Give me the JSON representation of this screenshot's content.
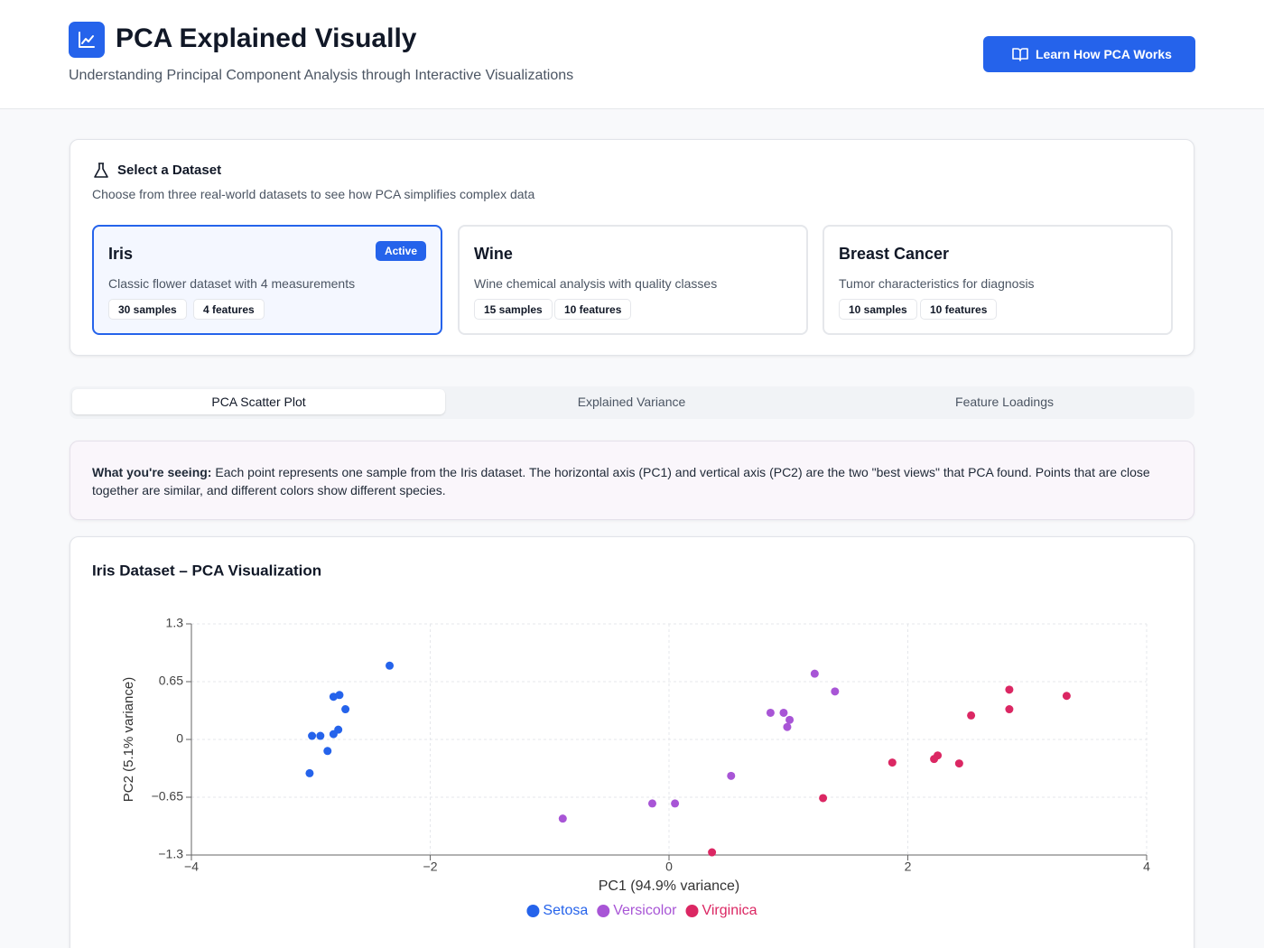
{
  "header": {
    "title": "PCA Explained Visually",
    "subtitle": "Understanding Principal Component Analysis through Interactive Visualizations",
    "button": "Learn How PCA Works"
  },
  "dataset_panel": {
    "title": "Select a Dataset",
    "description": "Choose from three real-world datasets to see how PCA simplifies complex data",
    "cards": [
      {
        "name": "Iris",
        "badge": "Active",
        "description": "Classic flower dataset with 4 measurements",
        "samples": "30 samples",
        "features": "4 features"
      },
      {
        "name": "Wine",
        "description": "Wine chemical analysis with quality classes",
        "samples": "15 samples",
        "features": "10 features"
      },
      {
        "name": "Breast Cancer",
        "description": "Tumor characteristics for diagnosis",
        "samples": "10 samples",
        "features": "10 features"
      }
    ]
  },
  "tabs": [
    "PCA Scatter Plot",
    "Explained Variance",
    "Feature Loadings"
  ],
  "info": {
    "label": "What you're seeing:",
    "text": "Each point represents one sample from the Iris dataset. The horizontal axis (PC1) and vertical axis (PC2) are the two \"best views\" that PCA found. Points that are close together are similar, and different colors show different species."
  },
  "chart_data": {
    "type": "scatter",
    "title": "Iris Dataset – PCA Visualization",
    "xlabel": "PC1 (94.9% variance)",
    "ylabel": "PC2 (5.1% variance)",
    "xlim": [
      -4,
      4
    ],
    "xticks": [
      {
        "value": -4,
        "label": "−4"
      },
      {
        "value": -2,
        "label": "−2"
      },
      0,
      2,
      4
    ],
    "ylim": [
      -1.3,
      1.3
    ],
    "yticks": [
      {
        "value": -1.3,
        "label": "−1.3"
      },
      {
        "value": -0.65,
        "label": "−0.65"
      },
      0,
      0.65,
      1.3
    ],
    "grid": true,
    "series": [
      {
        "name": "Setosa",
        "color": "#2563eb",
        "x": [
          -2.34,
          -2.81,
          -2.76,
          -2.71,
          -2.99,
          -2.92,
          -2.77,
          -2.81,
          -2.86,
          -3.01
        ],
        "values": [
          0.83,
          0.48,
          0.5,
          0.34,
          0.04,
          0.04,
          0.11,
          0.06,
          -0.13,
          -0.38
        ]
      },
      {
        "name": "Versicolor",
        "color": "#a855d6",
        "x": [
          1.22,
          1.39,
          0.85,
          0.96,
          1.01,
          0.99,
          0.52,
          -0.14,
          0.05,
          -0.89
        ],
        "values": [
          0.74,
          0.54,
          0.3,
          0.3,
          0.22,
          0.14,
          -0.41,
          -0.72,
          -0.72,
          -0.89
        ]
      },
      {
        "name": "Virginica",
        "color": "#db2763",
        "x": [
          2.85,
          3.33,
          2.85,
          2.53,
          1.87,
          2.25,
          2.22,
          2.43,
          1.29,
          0.36
        ],
        "values": [
          0.56,
          0.49,
          0.34,
          0.27,
          -0.26,
          -0.18,
          -0.22,
          -0.27,
          -0.66,
          -1.27
        ]
      }
    ]
  }
}
